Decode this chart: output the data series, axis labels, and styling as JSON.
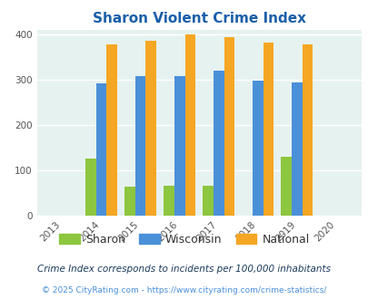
{
  "title": "Sharon Violent Crime Index",
  "years": [
    2013,
    2014,
    2015,
    2016,
    2017,
    2018,
    2019,
    2020
  ],
  "sharon": [
    null,
    125,
    63,
    65,
    65,
    null,
    130,
    null
  ],
  "wisconsin": [
    null,
    292,
    307,
    307,
    319,
    297,
    294,
    null
  ],
  "national": [
    null,
    377,
    385,
    399,
    394,
    382,
    378,
    null
  ],
  "sharon_color": "#8dc63f",
  "wisconsin_color": "#4a90d9",
  "national_color": "#f5a623",
  "bg_color": "#e6f2f0",
  "title_color": "#1a5fa8",
  "ylim": [
    0,
    410
  ],
  "yticks": [
    0,
    100,
    200,
    300,
    400
  ],
  "legend_labels": [
    "Sharon",
    "Wisconsin",
    "National"
  ],
  "footnote1": "Crime Index corresponds to incidents per 100,000 inhabitants",
  "footnote2": "© 2025 CityRating.com - https://www.cityrating.com/crime-statistics/",
  "footnote1_color": "#1a3a5c",
  "footnote2_color": "#4a90d9",
  "bar_width": 0.27
}
